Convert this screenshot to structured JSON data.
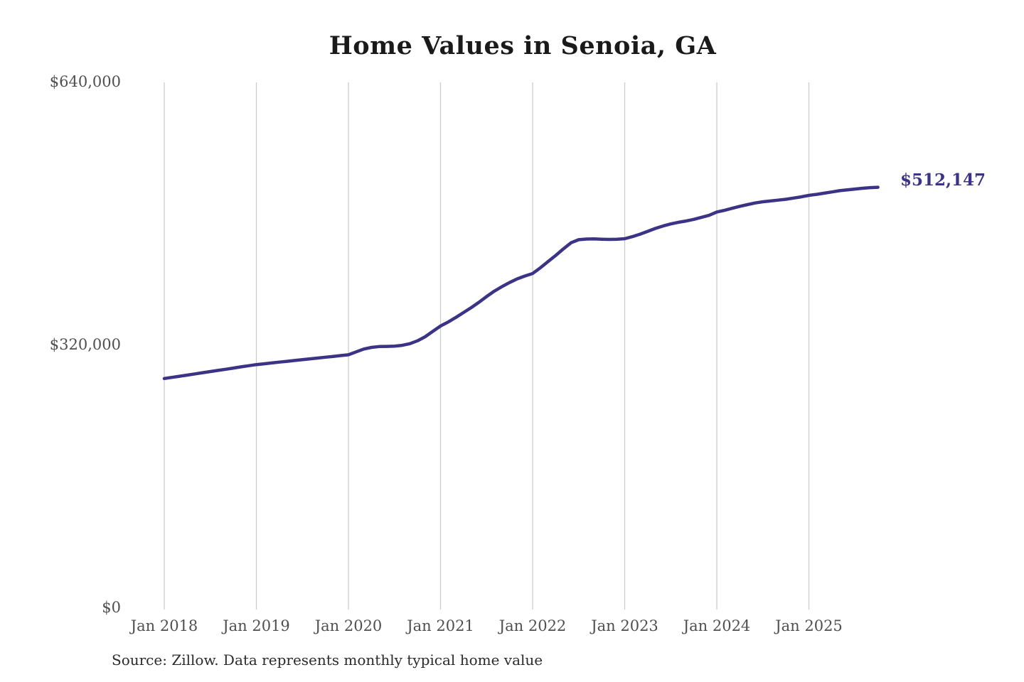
{
  "source_note": "Source: Zillow. Data represents monthly typical home value",
  "chart_data": {
    "type": "line",
    "title": "Home Values in Senoia, GA",
    "series_name": "Monthly typical home value",
    "x_start": "2018-01",
    "x_end": "2025-10",
    "frequency": "monthly",
    "values": [
      279000,
      280400,
      281800,
      283200,
      284700,
      286100,
      287500,
      288900,
      290300,
      291800,
      293200,
      294600,
      296000,
      297000,
      298000,
      299000,
      300000,
      301000,
      302000,
      303000,
      304000,
      305000,
      306000,
      307000,
      308000,
      311500,
      315000,
      317000,
      318000,
      318200,
      318500,
      319500,
      321500,
      325000,
      330000,
      336500,
      343000,
      348000,
      353500,
      359500,
      365500,
      372000,
      379000,
      385500,
      391000,
      396000,
      400500,
      404000,
      407000,
      414000,
      421500,
      429000,
      437000,
      444500,
      448300,
      449000,
      449200,
      448900,
      448600,
      448900,
      449500,
      452000,
      455000,
      458500,
      462000,
      465000,
      467500,
      469500,
      471000,
      473000,
      475500,
      478000,
      482000,
      484000,
      486500,
      489000,
      491000,
      493000,
      494500,
      495500,
      496500,
      497500,
      499000,
      500500,
      502300,
      503500,
      505000,
      506500,
      508000,
      509000,
      510000,
      511000,
      511700,
      512147
    ],
    "last_value": 512147,
    "last_value_label": "$512,147",
    "xticks": [
      "Jan 2018",
      "Jan 2019",
      "Jan 2020",
      "Jan 2021",
      "Jan 2022",
      "Jan 2023",
      "Jan 2024",
      "Jan 2025"
    ],
    "yticks": [
      "$0",
      "$320,000",
      "$640,000"
    ],
    "ylim": [
      0,
      640000
    ],
    "grid": "vertical-only",
    "legend": "none",
    "line_color": "#3a3386",
    "gridline_color": "#cccccc",
    "background": "#ffffff"
  }
}
